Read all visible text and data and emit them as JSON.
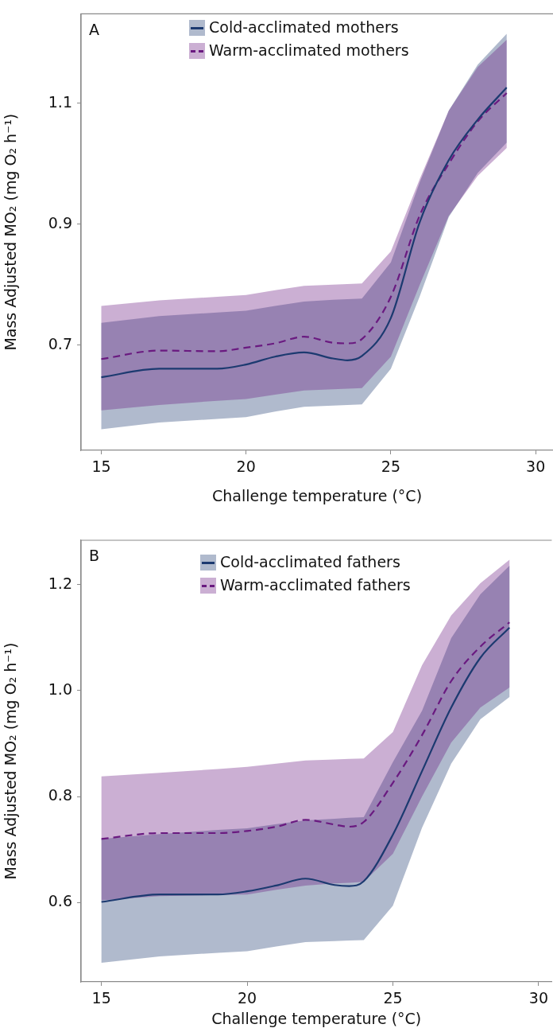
{
  "chart_data": [
    {
      "type": "line",
      "title": "A",
      "xlabel": "Challenge temperature (°C)",
      "ylabel": "Mass Adjusted MO₂ (mg O₂ h⁻¹)",
      "xlim": [
        14.3,
        30.6
      ],
      "xticks": [
        15,
        20,
        25,
        30
      ],
      "ylim": [
        0.526,
        1.248
      ],
      "yticks": [
        0.7,
        0.9,
        1.1
      ],
      "legend": "top",
      "x": [
        15,
        17,
        19,
        20,
        21,
        22,
        23,
        23.5,
        24,
        25,
        26,
        27,
        28,
        29
      ],
      "series": [
        {
          "name": "Cold-acclimated mothers",
          "color": "#1c3a70",
          "line_style": "solid",
          "values": [
            0.647,
            0.661,
            0.661,
            0.668,
            0.681,
            0.688,
            0.678,
            0.675,
            0.682,
            0.745,
            0.904,
            1.006,
            1.073,
            1.126
          ],
          "lower": [
            0.561,
            0.572,
            0.578,
            0.581,
            0.59,
            0.598,
            0.6,
            0.601,
            0.602,
            0.661,
            0.781,
            0.912,
            0.985,
            1.035
          ],
          "upper": [
            0.737,
            0.748,
            0.754,
            0.757,
            0.765,
            0.772,
            0.775,
            0.776,
            0.777,
            0.837,
            0.97,
            1.088,
            1.164,
            1.215
          ]
        },
        {
          "name": "Warm-acclimated mothers",
          "color": "#6a1a80",
          "line_style": "dashed",
          "values": [
            0.677,
            0.691,
            0.69,
            0.696,
            0.703,
            0.714,
            0.704,
            0.703,
            0.71,
            0.78,
            0.915,
            1.0,
            1.07,
            1.117
          ],
          "lower": [
            0.592,
            0.601,
            0.608,
            0.611,
            0.618,
            0.625,
            0.627,
            0.628,
            0.629,
            0.681,
            0.8,
            0.914,
            0.98,
            1.026
          ],
          "upper": [
            0.765,
            0.774,
            0.78,
            0.783,
            0.791,
            0.798,
            0.8,
            0.801,
            0.802,
            0.855,
            0.975,
            1.088,
            1.16,
            1.205
          ]
        }
      ]
    },
    {
      "type": "line",
      "title": "B",
      "xlabel": "Challenge temperature (°C)",
      "ylabel": "Mass Adjusted MO₂ (mg O₂ h⁻¹)",
      "xlim": [
        14.3,
        30.45
      ],
      "xticks": [
        15,
        20,
        25,
        30
      ],
      "ylim": [
        0.45,
        1.284
      ],
      "yticks": [
        0.6,
        0.8,
        {
          "value": 1,
          "label": "1.0"
        },
        1.2
      ],
      "legend": "top",
      "x": [
        15,
        17,
        19,
        20,
        21,
        22,
        23,
        23.5,
        24,
        25,
        26,
        27,
        28,
        29
      ],
      "series": [
        {
          "name": "Cold-acclimated fathers",
          "color": "#1c3a70",
          "line_style": "solid",
          "values": [
            0.601,
            0.615,
            0.615,
            0.621,
            0.632,
            0.645,
            0.633,
            0.631,
            0.64,
            0.728,
            0.848,
            0.968,
            1.062,
            1.119
          ],
          "lower": [
            0.486,
            0.498,
            0.505,
            0.508,
            0.517,
            0.525,
            0.527,
            0.528,
            0.529,
            0.594,
            0.741,
            0.862,
            0.946,
            0.988
          ],
          "upper": [
            0.72,
            0.729,
            0.737,
            0.74,
            0.748,
            0.755,
            0.758,
            0.76,
            0.761,
            0.865,
            0.962,
            1.099,
            1.182,
            1.236
          ]
        },
        {
          "name": "Warm-acclimated fathers",
          "color": "#6a1a80",
          "line_style": "dashed",
          "values": [
            0.72,
            0.731,
            0.731,
            0.735,
            0.743,
            0.756,
            0.747,
            0.743,
            0.752,
            0.826,
            0.916,
            1.018,
            1.083,
            1.129
          ],
          "lower": [
            0.604,
            0.612,
            0.614,
            0.615,
            0.624,
            0.632,
            0.636,
            0.637,
            0.639,
            0.692,
            0.8,
            0.902,
            0.968,
            1.006
          ],
          "upper": [
            0.838,
            0.845,
            0.852,
            0.856,
            0.862,
            0.868,
            0.87,
            0.871,
            0.872,
            0.922,
            1.048,
            1.142,
            1.203,
            1.247
          ]
        }
      ]
    }
  ]
}
